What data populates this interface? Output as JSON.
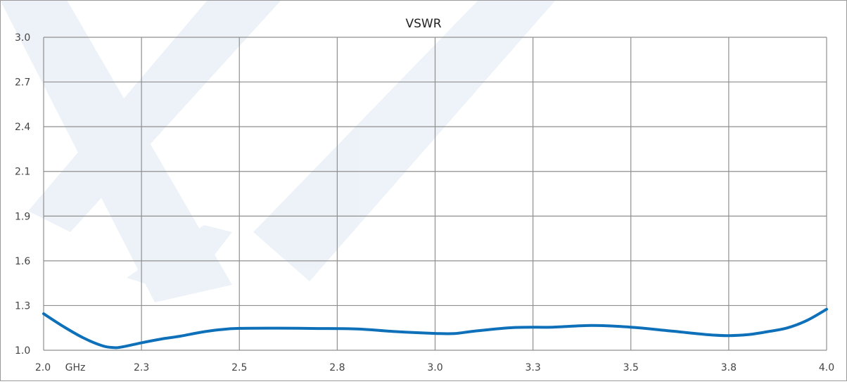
{
  "chart_data": {
    "type": "line",
    "title": "VSWR",
    "x_unit_label": "GHz",
    "xlim": [
      2.0,
      4.0
    ],
    "x_ticks": [
      {
        "value": 2.0,
        "label": "2.0"
      },
      {
        "value": 2.25,
        "label": "2.3"
      },
      {
        "value": 2.5,
        "label": "2.5"
      },
      {
        "value": 2.75,
        "label": "2.8"
      },
      {
        "value": 3.0,
        "label": "3.0"
      },
      {
        "value": 3.25,
        "label": "3.3"
      },
      {
        "value": 3.5,
        "label": "3.5"
      },
      {
        "value": 3.75,
        "label": "3.8"
      },
      {
        "value": 4.0,
        "label": "4.0"
      }
    ],
    "y_ticks": [
      "1.0",
      "1.3",
      "1.6",
      "1.9",
      "2.1",
      "2.4",
      "2.7",
      "3.0"
    ],
    "ylim": [
      1.0,
      3.0
    ],
    "grid": true,
    "colors": {
      "line": "#0e70b8",
      "grid": "#8f8f8f",
      "watermark": "#dbe7f3"
    },
    "series": [
      {
        "x": [
          2.0,
          2.05,
          2.1,
          2.15,
          2.18,
          2.2,
          2.25,
          2.3,
          2.35,
          2.4,
          2.45,
          2.5,
          2.6,
          2.7,
          2.8,
          2.9,
          3.0,
          3.05,
          3.1,
          3.2,
          3.3,
          3.4,
          3.5,
          3.6,
          3.7,
          3.75,
          3.8,
          3.85,
          3.9,
          3.95,
          4.0
        ],
        "y": [
          1.245,
          1.16,
          1.085,
          1.03,
          1.018,
          1.022,
          1.05,
          1.075,
          1.095,
          1.12,
          1.138,
          1.147,
          1.148,
          1.146,
          1.143,
          1.125,
          1.113,
          1.112,
          1.128,
          1.152,
          1.155,
          1.166,
          1.155,
          1.13,
          1.104,
          1.098,
          1.105,
          1.125,
          1.15,
          1.2,
          1.275
        ]
      }
    ]
  }
}
